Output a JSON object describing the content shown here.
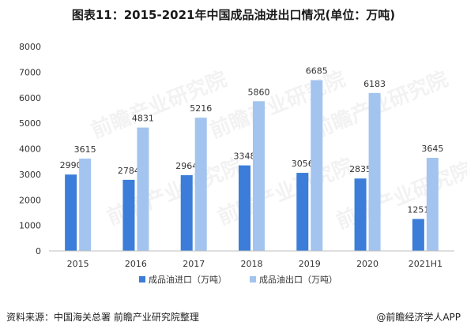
{
  "title": "图表11：2015-2021年中国成品油进出口情况(单位：万吨)",
  "footer": {
    "source": "资料来源：中国海关总署 前瞻产业研究院整理",
    "brand": "@前瞻经济学人APP"
  },
  "watermark": "前瞻产业研究院",
  "colors": {
    "import": "#3b7dd8",
    "export": "#a3c4ef",
    "axis": "#bfbfbf",
    "text": "#333333"
  },
  "chart_data": {
    "type": "bar",
    "categories": [
      "2015",
      "2016",
      "2017",
      "2018",
      "2019",
      "2020",
      "2021H1"
    ],
    "series": [
      {
        "name": "成品油进口（万吨）",
        "values": [
          2990,
          2784,
          2964,
          3348,
          3056,
          2835,
          1251
        ]
      },
      {
        "name": "成品油出口（万吨）",
        "values": [
          3615,
          4831,
          5216,
          5860,
          6685,
          6183,
          3645
        ]
      }
    ],
    "yticks": [
      "0",
      "1000",
      "2000",
      "3000",
      "4000",
      "5000",
      "6000",
      "7000",
      "8000"
    ],
    "ylim": [
      0,
      8000
    ],
    "grid": false,
    "legend": "bottom"
  }
}
